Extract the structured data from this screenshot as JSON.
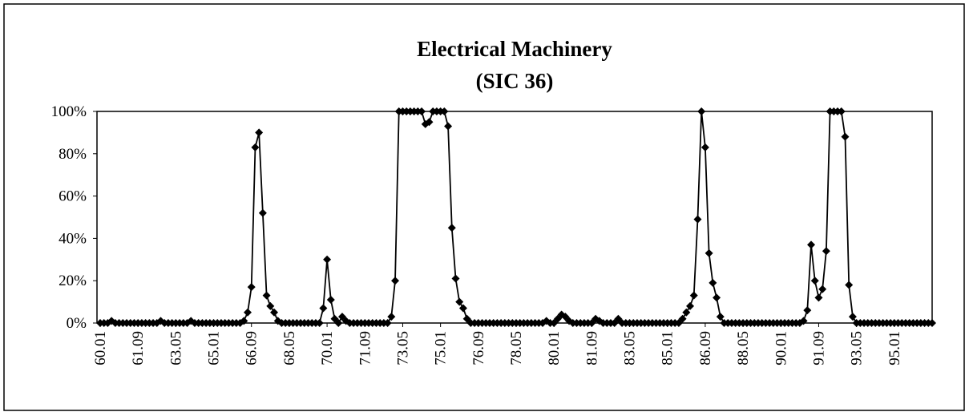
{
  "chart_data": {
    "type": "line",
    "title": "Electrical Machinery",
    "subtitle": "(SIC 36)",
    "categories": [
      "60.01",
      null,
      null,
      null,
      null,
      null,
      null,
      null,
      null,
      null,
      "61.09",
      null,
      null,
      null,
      null,
      null,
      null,
      null,
      null,
      null,
      "63.05",
      null,
      null,
      null,
      null,
      null,
      null,
      null,
      null,
      null,
      "65.01",
      null,
      null,
      null,
      null,
      null,
      null,
      null,
      null,
      null,
      "66.09",
      null,
      null,
      null,
      null,
      null,
      null,
      null,
      null,
      null,
      "68.05",
      null,
      null,
      null,
      null,
      null,
      null,
      null,
      null,
      null,
      "70.01",
      null,
      null,
      null,
      null,
      null,
      null,
      null,
      null,
      null,
      "71.09",
      null,
      null,
      null,
      null,
      null,
      null,
      null,
      null,
      null,
      "73.05",
      null,
      null,
      null,
      null,
      null,
      null,
      null,
      null,
      null,
      "75.01",
      null,
      null,
      null,
      null,
      null,
      null,
      null,
      null,
      null,
      "76.09",
      null,
      null,
      null,
      null,
      null,
      null,
      null,
      null,
      null,
      "78.05",
      null,
      null,
      null,
      null,
      null,
      null,
      null,
      null,
      null,
      "80.01",
      null,
      null,
      null,
      null,
      null,
      null,
      null,
      null,
      null,
      "81.09",
      null,
      null,
      null,
      null,
      null,
      null,
      null,
      null,
      null,
      "83.05",
      null,
      null,
      null,
      null,
      null,
      null,
      null,
      null,
      null,
      "85.01",
      null,
      null,
      null,
      null,
      null,
      null,
      null,
      null,
      null,
      "86.09",
      null,
      null,
      null,
      null,
      null,
      null,
      null,
      null,
      null,
      "88.05",
      null,
      null,
      null,
      null,
      null,
      null,
      null,
      null,
      null,
      "90.01",
      null,
      null,
      null,
      null,
      null,
      null,
      null,
      null,
      null,
      "91.09",
      null,
      null,
      null,
      null,
      null,
      null,
      null,
      null,
      null,
      "93.05",
      null,
      null,
      null,
      null,
      null,
      null,
      null,
      null,
      null,
      "95.01",
      null,
      null,
      null,
      null,
      null,
      null,
      null,
      null,
      null,
      null
    ],
    "values": [
      0,
      0,
      0,
      1,
      0,
      0,
      0,
      0,
      0,
      0,
      0,
      0,
      0,
      0,
      0,
      0,
      1,
      0,
      0,
      0,
      0,
      0,
      0,
      0,
      1,
      0,
      0,
      0,
      0,
      0,
      0,
      0,
      0,
      0,
      0,
      0,
      0,
      0,
      1,
      5,
      17,
      83,
      90,
      52,
      13,
      8,
      5,
      1,
      0,
      0,
      0,
      0,
      0,
      0,
      0,
      0,
      0,
      0,
      0,
      7,
      30,
      11,
      2,
      0,
      3,
      1,
      0,
      0,
      0,
      0,
      0,
      0,
      0,
      0,
      0,
      0,
      0,
      3,
      20,
      100,
      100,
      100,
      100,
      100,
      100,
      100,
      94,
      95,
      100,
      100,
      100,
      100,
      93,
      45,
      21,
      10,
      7,
      2,
      0,
      0,
      0,
      0,
      0,
      0,
      0,
      0,
      0,
      0,
      0,
      0,
      0,
      0,
      0,
      0,
      0,
      0,
      0,
      0,
      1,
      0,
      0,
      2,
      4,
      3,
      1,
      0,
      0,
      0,
      0,
      0,
      0,
      2,
      1,
      0,
      0,
      0,
      0,
      2,
      0,
      0,
      0,
      0,
      0,
      0,
      0,
      0,
      0,
      0,
      0,
      0,
      0,
      0,
      0,
      0,
      2,
      5,
      8,
      13,
      49,
      100,
      83,
      33,
      19,
      12,
      3,
      0,
      0,
      0,
      0,
      0,
      0,
      0,
      0,
      0,
      0,
      0,
      0,
      0,
      0,
      0,
      0,
      0,
      0,
      0,
      0,
      0,
      1,
      6,
      37,
      20,
      12,
      16,
      34,
      100,
      100,
      100,
      100,
      88,
      18,
      3,
      0,
      0,
      0,
      0,
      0,
      0,
      0,
      0,
      0,
      0,
      0,
      0,
      0,
      0,
      0,
      0,
      0,
      0,
      0,
      0,
      0
    ],
    "color": "#000000",
    "ylim": [
      0,
      100
    ],
    "yticks": [
      {
        "value": 0,
        "label": "0%"
      },
      {
        "value": 20,
        "label": "20%"
      },
      {
        "value": 40,
        "label": "40%"
      },
      {
        "value": 60,
        "label": "60%"
      },
      {
        "value": 80,
        "label": "80%"
      },
      {
        "value": 100,
        "label": "100%"
      }
    ],
    "grid": false
  }
}
